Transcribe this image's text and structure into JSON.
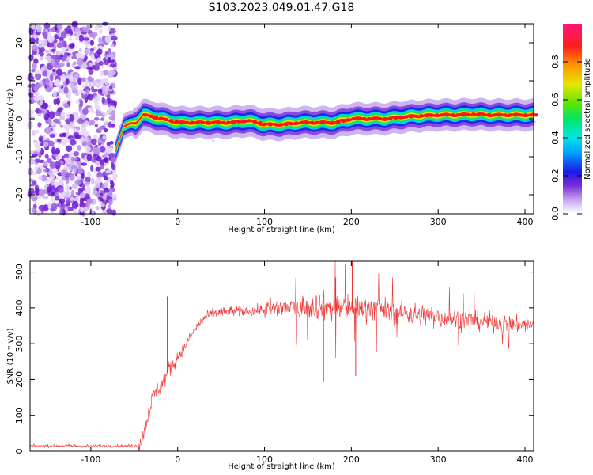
{
  "title": "S103.2023.049.01.47.G18",
  "chart_data": [
    {
      "type": "heatmap",
      "xlabel": "Height of straight line (km)",
      "ylabel": "Frequency (Hz)",
      "xlim": [
        -170,
        410
      ],
      "ylim": [
        -25,
        25
      ],
      "xticks": [
        -100,
        0,
        100,
        200,
        300,
        400
      ],
      "yticks": [
        -20,
        -10,
        0,
        10,
        20
      ],
      "ridge": {
        "x": [
          -72,
          -68,
          -62,
          -55,
          -48,
          -40,
          -30,
          -20,
          0,
          20,
          40,
          60,
          80,
          100,
          120,
          140,
          160,
          180,
          200,
          220,
          240,
          260,
          280,
          300,
          320,
          340,
          360,
          380,
          410
        ],
        "y": [
          -9,
          -6,
          -2,
          -1.5,
          -1,
          1,
          0.5,
          0,
          -1,
          -1,
          -1,
          -1,
          -0.5,
          -1.5,
          -1.5,
          -1,
          -1,
          -1,
          0,
          0,
          0,
          0.5,
          0.8,
          1,
          1,
          1.2,
          1,
          1,
          1
        ]
      },
      "noise_region_x": [
        -170,
        -72
      ],
      "colorbar": {
        "label": "Normalized spectral amplitude",
        "range": [
          0,
          1
        ],
        "ticks": [
          0.0,
          0.2,
          0.4,
          0.6,
          0.8
        ],
        "tick_labels": [
          "0.0",
          "0.2",
          "0.4",
          "0.6",
          "0.8"
        ]
      }
    },
    {
      "type": "line",
      "xlabel": "Height of straight line (km)",
      "ylabel": "SNR (10 * v/v)",
      "xlim": [
        -170,
        410
      ],
      "ylim": [
        0,
        530
      ],
      "xticks": [
        -100,
        0,
        100,
        200,
        300,
        400
      ],
      "yticks": [
        0,
        100,
        200,
        300,
        400,
        500
      ],
      "series": [
        {
          "color": "#ee3333",
          "x": [
            -170,
            -100,
            -45,
            -40,
            -35,
            -30,
            -25,
            -20,
            -15,
            -10,
            -5,
            0,
            10,
            20,
            30,
            40,
            60,
            80,
            100,
            120,
            140,
            160,
            180,
            200,
            220,
            240,
            260,
            280,
            300,
            320,
            340,
            360,
            380,
            410
          ],
          "y": [
            15,
            15,
            15,
            40,
            90,
            140,
            170,
            180,
            200,
            230,
            240,
            260,
            300,
            340,
            370,
            385,
            390,
            390,
            395,
            400,
            400,
            405,
            400,
            400,
            400,
            395,
            385,
            380,
            375,
            370,
            365,
            360,
            355,
            350
          ]
        }
      ],
      "spikes": [
        {
          "x": -12,
          "y": 432
        },
        {
          "x": 168,
          "y": 195
        },
        {
          "x": 182,
          "y": 485
        },
        {
          "x": 201,
          "y": 530
        },
        {
          "x": 205,
          "y": 210
        }
      ]
    }
  ]
}
